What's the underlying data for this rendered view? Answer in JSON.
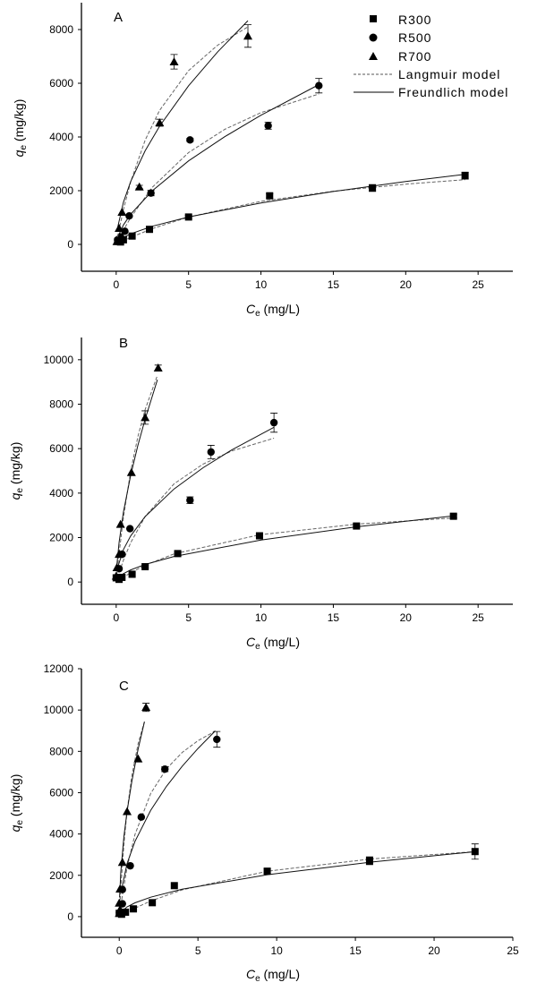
{
  "chart_data": [
    {
      "panel_label": "A",
      "type": "scatter",
      "xlabel": {
        "symbol": "C",
        "subscript": "e",
        "unit": " (mg/L)"
      },
      "ylabel": {
        "symbol": "q",
        "subscript": "e",
        "unit": " (mg/kg)"
      },
      "xlim": [
        -2.4,
        27.4
      ],
      "ylim": [
        -1000,
        9000
      ],
      "xticks": [
        0,
        5,
        10,
        15,
        20,
        25
      ],
      "yticks": [
        0,
        2000,
        4000,
        6000,
        8000
      ],
      "grid": false,
      "legend": {
        "position": "top-right",
        "entries": [
          {
            "label": "R300",
            "marker": "square"
          },
          {
            "label": "R500",
            "marker": "circle"
          },
          {
            "label": "R700",
            "marker": "triangle"
          },
          {
            "label": "Langmuir model",
            "line": "dashed"
          },
          {
            "label": "Freundlich model",
            "line": "solid"
          }
        ]
      },
      "series": [
        {
          "name": "R300",
          "marker": "square",
          "x": [
            0.1,
            0.3,
            0.5,
            1.1,
            2.3,
            5.0,
            10.6,
            17.7,
            24.1
          ],
          "y": [
            110,
            90,
            170,
            310,
            560,
            1020,
            1810,
            2100,
            2560
          ],
          "err": [
            0,
            0,
            0,
            0,
            60,
            50,
            80,
            130,
            130
          ],
          "langmuir": {
            "x": [
              0.1,
              1,
              2.5,
              5,
              10,
              15,
              20,
              24.1
            ],
            "y": [
              28,
              261,
              590,
              1020,
              1603,
              1980,
              2244,
              2410
            ]
          },
          "freundlich": {
            "x": [
              0.1,
              0.5,
              1,
              2.5,
              5,
              10,
              15,
              20,
              24.1
            ],
            "y": [
              100,
              259,
              392,
              677,
              1020,
              1544,
              1970,
              2340,
              2610
            ]
          }
        },
        {
          "name": "R500",
          "marker": "circle",
          "x": [
            0.1,
            0.3,
            0.6,
            0.9,
            2.4,
            5.1,
            10.5,
            14.0
          ],
          "y": [
            170,
            280,
            490,
            1060,
            1910,
            3890,
            4420,
            5910
          ],
          "err": [
            0,
            0,
            0,
            0,
            100,
            60,
            130,
            270
          ],
          "langmuir": {
            "x": [
              0.1,
              0.5,
              1,
              2.5,
              5,
              7.5,
              10,
              14
            ],
            "y": [
              111,
              530,
              999,
              2130,
              3420,
              4285,
              4906,
              5600
            ]
          },
          "freundlich": {
            "x": [
              0.1,
              0.5,
              1,
              2.5,
              5,
              7.5,
              10,
              14
            ],
            "y": [
              262,
              724,
              1122,
              2000,
              3110,
              4010,
              4810,
              5950
            ]
          }
        },
        {
          "name": "R700",
          "marker": "triangle",
          "x": [
            0.05,
            0.2,
            0.4,
            1.6,
            3.0,
            4.0,
            9.1
          ],
          "y": [
            110,
            600,
            1200,
            2140,
            4530,
            6800,
            7760
          ],
          "err": [
            0,
            0,
            0,
            60,
            130,
            270,
            420
          ],
          "langmuir": {
            "x": [
              0.1,
              0.5,
              1,
              2,
              3,
              5,
              7,
              9.1
            ],
            "y": [
              284,
              1294,
              2330,
              3883,
              4990,
              6470,
              7414,
              8100
            ]
          },
          "freundlich": {
            "x": [
              0.1,
              0.5,
              1,
              2,
              3,
              5,
              7,
              9.1
            ],
            "y": [
              622,
              1570,
              2340,
              3487,
              4400,
              5905,
              7160,
              8330
            ]
          }
        }
      ]
    },
    {
      "panel_label": "B",
      "type": "scatter",
      "xlabel": {
        "symbol": "C",
        "subscript": "e",
        "unit": " (mg/L)"
      },
      "ylabel": {
        "symbol": "q",
        "subscript": "e",
        "unit": " (mg/kg)"
      },
      "xlim": [
        -2.4,
        27.4
      ],
      "ylim": [
        -1000,
        11000
      ],
      "xticks": [
        0,
        5,
        10,
        15,
        20,
        25
      ],
      "yticks": [
        0,
        2000,
        4000,
        6000,
        8000,
        10000
      ],
      "grid": false,
      "series": [
        {
          "name": "R300",
          "marker": "square",
          "x": [
            0,
            0.2,
            0.4,
            1.1,
            2.0,
            4.25,
            9.9,
            16.6,
            23.3
          ],
          "y": [
            190,
            120,
            210,
            350,
            690,
            1280,
            2080,
            2520,
            2960
          ],
          "err": [
            0,
            0,
            0,
            0,
            50,
            60,
            80,
            60,
            80
          ],
          "langmuir": {
            "x": [
              0.1,
              0.5,
              1,
              2,
              4,
              9.9,
              16.6,
              23.3
            ],
            "y": [
              46,
              221,
              419,
              757,
              1268,
              2123,
              2603,
              2880
            ]
          },
          "freundlich": {
            "x": [
              0.1,
              0.5,
              1,
              2,
              4,
              10,
              16.6,
              23.3
            ],
            "y": [
              158,
              376,
              546,
              793,
              1152,
              1890,
              2482,
              2980
            ]
          }
        },
        {
          "name": "R500",
          "marker": "circle",
          "x": [
            0.1,
            0.2,
            0.4,
            0.95,
            5.1,
            6.55,
            10.9
          ],
          "y": [
            200,
            600,
            1250,
            2400,
            3680,
            5850,
            7170
          ],
          "err": [
            0,
            0,
            0,
            0,
            150,
            300,
            430
          ],
          "langmuir": {
            "x": [
              0.1,
              0.5,
              1,
              2,
              4,
              6,
              8,
              10.9
            ],
            "y": [
              216,
              983,
              1769,
              2948,
              4422,
              5307,
              5897,
              6470
            ]
          },
          "freundlich": {
            "x": [
              0.1,
              0.5,
              1,
              2,
              4,
              6,
              8,
              10.9
            ],
            "y": [
              645,
              1459,
              2073,
              2946,
              4188,
              5140,
              5950,
              6960
            ]
          }
        },
        {
          "name": "R700",
          "marker": "triangle",
          "x": [
            0,
            0.05,
            0.2,
            0.3,
            1.05,
            2.0,
            2.9
          ],
          "y": [
            270,
            650,
            1250,
            2600,
            4930,
            7400,
            9630
          ],
          "err": [
            0,
            0,
            0,
            0,
            0,
            300,
            130
          ],
          "langmuir": {
            "x": [
              0.05,
              0.2,
              0.5,
              1,
              1.5,
              2,
              2.85
            ],
            "y": [
              342,
              1293,
              2910,
              4988,
              6548,
              7760,
              9300
            ]
          },
          "freundlich": {
            "x": [
              0.05,
              0.2,
              0.5,
              1,
              1.5,
              2,
              2.85
            ],
            "y": [
              770,
              1796,
              3144,
              4800,
              6150,
              7330,
              9100
            ]
          }
        }
      ]
    },
    {
      "panel_label": "C",
      "type": "scatter",
      "xlabel": {
        "symbol": "C",
        "subscript": "e",
        "unit": " (mg/L)"
      },
      "ylabel": {
        "symbol": "q",
        "subscript": "e",
        "unit": " (mg/kg)"
      },
      "xlim": [
        -2.4,
        25
      ],
      "ylim": [
        -1000,
        12000
      ],
      "xticks": [
        0,
        5,
        10,
        15,
        20,
        25
      ],
      "yticks": [
        0,
        2000,
        4000,
        6000,
        8000,
        10000,
        12000
      ],
      "grid": false,
      "series": [
        {
          "name": "R300",
          "marker": "square",
          "x": [
            0,
            0.15,
            0.4,
            0.9,
            2.1,
            3.5,
            9.4,
            15.9,
            22.6
          ],
          "y": [
            160,
            115,
            215,
            375,
            675,
            1500,
            2200,
            2705,
            3150
          ],
          "err": [
            0,
            0,
            0,
            0,
            0,
            0,
            110,
            190,
            370
          ],
          "langmuir": {
            "x": [
              0.1,
              0.5,
              1,
              2,
              4,
              9.4,
              16,
              22.7
            ],
            "y": [
              45,
              216,
              413,
              756,
              1297,
              2199,
              2793,
              3150
            ]
          },
          "freundlich": {
            "x": [
              0.1,
              0.5,
              1,
              2,
              4,
              9.4,
              16,
              22.7
            ],
            "y": [
              212,
              472,
              667,
              941,
              1329,
              2030,
              2640,
              3150
            ]
          }
        },
        {
          "name": "R500",
          "marker": "circle",
          "x": [
            0.15,
            0.2,
            0.2,
            0.7,
            1.4,
            2.9,
            6.2
          ],
          "y": [
            190,
            620,
            1310,
            2460,
            4820,
            7140,
            8580
          ],
          "err": [
            0,
            0,
            0,
            0,
            0,
            120,
            380
          ],
          "langmuir": {
            "x": [
              0.1,
              0.5,
              1,
              2,
              3,
              4,
              5,
              6.1
            ],
            "y": [
              568,
              2385,
              3975,
              5963,
              7155,
              7950,
              8518,
              8980
            ]
          },
          "freundlich": {
            "x": [
              0.1,
              0.5,
              1,
              2,
              3,
              4,
              5,
              6.1
            ],
            "y": [
              1151,
              2574,
              3640,
              5148,
              6305,
              7280,
              8140,
              8990
            ]
          }
        },
        {
          "name": "R700",
          "marker": "triangle",
          "x": [
            0,
            0.05,
            0.0,
            0.05,
            0.2,
            0.5,
            1.2,
            1.7
          ],
          "y": [
            160,
            345,
            660,
            1340,
            2630,
            5090,
            7640,
            10130
          ],
          "err": [
            0,
            0,
            0,
            0,
            0,
            0,
            0,
            200
          ],
          "langmuir": {
            "x": [
              0.02,
              0.1,
              0.3,
              0.5,
              0.8,
              1.2,
              1.6
            ],
            "y": [
              301,
              1395,
              3540,
              5113,
              6818,
              8367,
              9440
            ]
          },
          "freundlich": {
            "x": [
              0.02,
              0.1,
              0.3,
              0.5,
              0.8,
              1.2,
              1.6
            ],
            "y": [
              928,
              2180,
              3893,
              5100,
              6543,
              8103,
              9436
            ]
          }
        }
      ]
    }
  ]
}
